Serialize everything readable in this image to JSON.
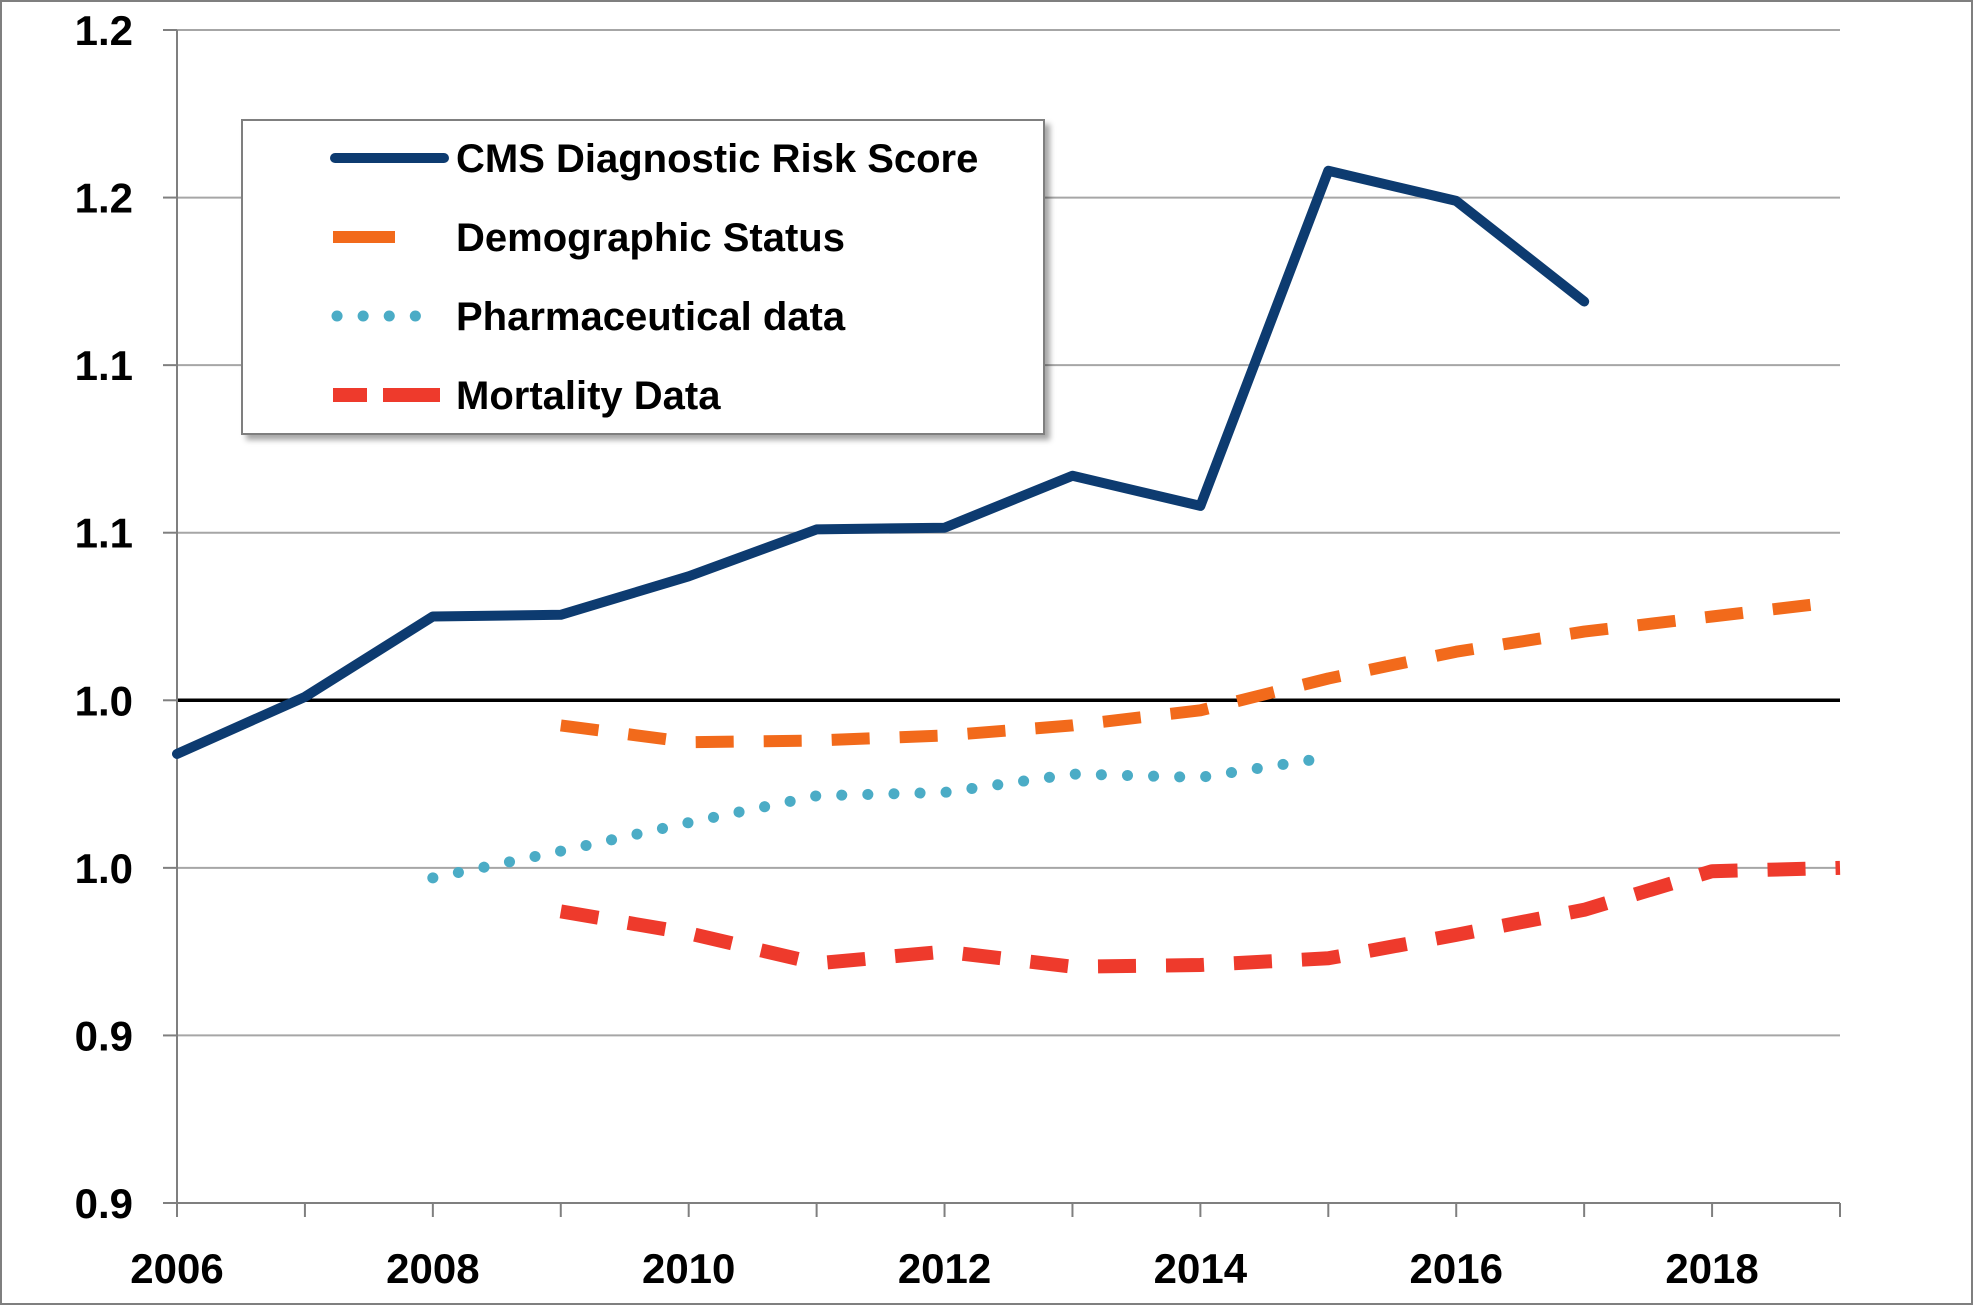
{
  "chart_data": {
    "type": "line",
    "title": "",
    "xlabel": "",
    "ylabel": "",
    "x_ticks": [
      "2006",
      "2008",
      "2010",
      "2012",
      "2014",
      "2016",
      "2018"
    ],
    "y_ticks": [
      "0.9",
      "0.9",
      "1.0",
      "1.0",
      "1.1",
      "1.1",
      "1.2",
      "1.2"
    ],
    "xlim": [
      2006,
      2019
    ],
    "ylim": [
      0.85,
      1.2
    ],
    "grid": true,
    "reference_line": 1.0,
    "legend": {
      "placement": "top-left"
    },
    "series": [
      {
        "name": "CMS Diagnostic Risk Score",
        "style": "solid",
        "color": "#0D3B70",
        "x": [
          2006,
          2007,
          2008,
          2009,
          2010,
          2011,
          2012,
          2013,
          2014,
          2015,
          2016,
          2017
        ],
        "y": [
          0.984,
          1.001,
          1.025,
          1.0255,
          1.037,
          1.051,
          1.0515,
          1.067,
          1.058,
          1.158,
          1.149,
          1.119
        ]
      },
      {
        "name": "Demographic Status",
        "style": "dash",
        "color": "#F26A1B",
        "x": [
          2009,
          2010,
          2011,
          2012,
          2013,
          2014,
          2015,
          2016,
          2017,
          2018,
          2019
        ],
        "y": [
          0.9925,
          0.9875,
          0.988,
          0.9895,
          0.9925,
          0.997,
          1.0065,
          1.0145,
          1.0205,
          1.025,
          1.0295
        ]
      },
      {
        "name": "Pharmaceutical data",
        "style": "dot",
        "color": "#4BACC6",
        "x": [
          2008,
          2009,
          2010,
          2011,
          2012,
          2013,
          2014,
          2015
        ],
        "y": [
          0.947,
          0.955,
          0.9635,
          0.9715,
          0.9725,
          0.978,
          0.977,
          0.983
        ]
      },
      {
        "name": "Mortality Data",
        "style": "dash-thick",
        "color": "#EE3A2C",
        "x": [
          2009,
          2010,
          2011,
          2012,
          2013,
          2014,
          2015,
          2016,
          2017,
          2018,
          2019
        ],
        "y": [
          0.937,
          0.9305,
          0.9215,
          0.925,
          0.9205,
          0.921,
          0.923,
          0.93,
          0.9375,
          0.949,
          0.95
        ]
      }
    ]
  },
  "colors": {
    "grid": "#A6A6A6",
    "axis": "#7F7F7F",
    "reference": "#000000",
    "legend_border": "#7F7F7F"
  }
}
